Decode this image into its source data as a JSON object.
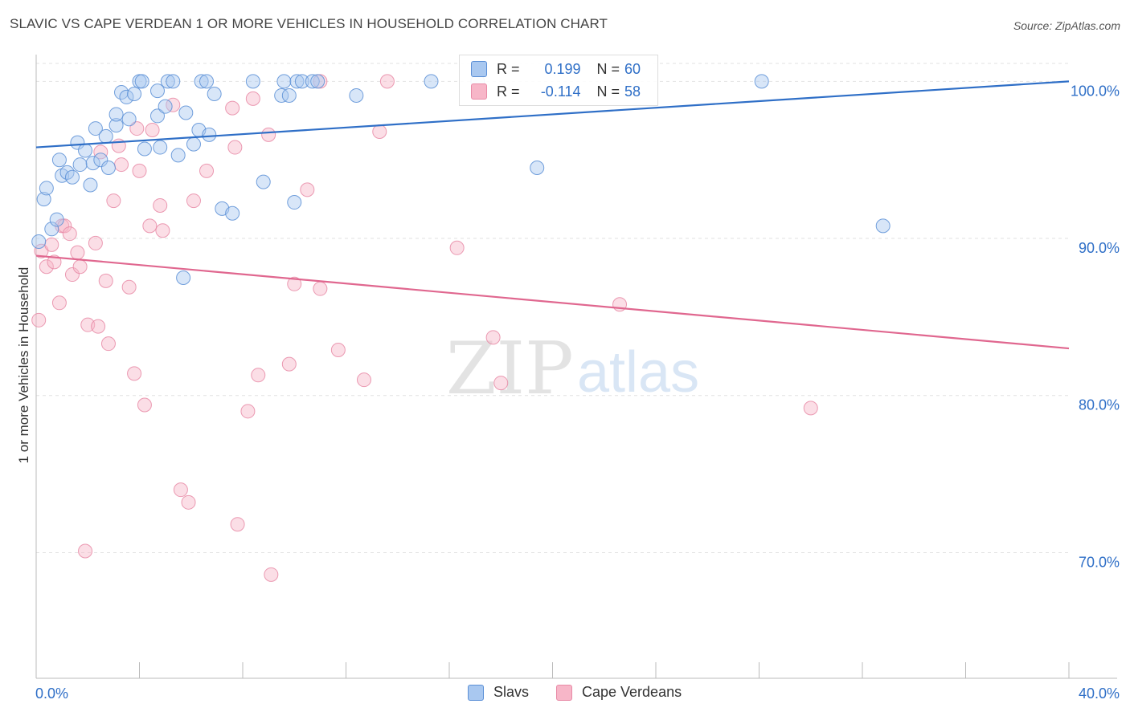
{
  "header": {
    "title": "SLAVIC VS CAPE VERDEAN 1 OR MORE VEHICLES IN HOUSEHOLD CORRELATION CHART",
    "source": "Source: ZipAtlas.com"
  },
  "watermark": {
    "zip": "ZIP",
    "atlas": "atlas"
  },
  "legend": {
    "slavs": {
      "r_label": "R =",
      "r_value": "0.199",
      "n_label": "N =",
      "n_value": "60"
    },
    "cape": {
      "r_label": "R =",
      "r_value": "-0.114",
      "n_label": "N =",
      "n_value": "58"
    }
  },
  "colors": {
    "slavs_fill": "#a9c8f0",
    "slavs_stroke": "#5b8fd6",
    "slavs_line": "#2f6fc7",
    "cape_fill": "#f7b6c8",
    "cape_stroke": "#e88aa6",
    "cape_line": "#e0678f",
    "tick_text": "#2f6fc7",
    "grid": "#e2e2e2"
  },
  "chart_data": {
    "type": "scatter",
    "title": "SLAVIC VS CAPE VERDEAN 1 OR MORE VEHICLES IN HOUSEHOLD CORRELATION CHART",
    "xlabel": "",
    "ylabel": "1 or more Vehicles in Household",
    "xlim": [
      0,
      40
    ],
    "ylim": [
      62,
      101.5
    ],
    "x_tick_labels": [
      "0.0%",
      "40.0%"
    ],
    "y_ticks": [
      70,
      80,
      90,
      100
    ],
    "y_tick_labels": [
      "70.0%",
      "80.0%",
      "90.0%",
      "100.0%"
    ],
    "grid": true,
    "legend_position": "top-center",
    "series": [
      {
        "name": "Slavs",
        "r": 0.199,
        "n": 60,
        "trend": [
          [
            0,
            95.8
          ],
          [
            40,
            100.0
          ]
        ],
        "points": [
          [
            0.1,
            89.8
          ],
          [
            0.3,
            92.5
          ],
          [
            0.4,
            93.2
          ],
          [
            0.6,
            90.6
          ],
          [
            0.8,
            91.2
          ],
          [
            0.9,
            95.0
          ],
          [
            1.0,
            94.0
          ],
          [
            1.2,
            94.2
          ],
          [
            1.4,
            93.9
          ],
          [
            1.6,
            96.1
          ],
          [
            1.7,
            94.7
          ],
          [
            1.9,
            95.6
          ],
          [
            2.1,
            93.4
          ],
          [
            2.2,
            94.8
          ],
          [
            2.3,
            97.0
          ],
          [
            2.5,
            95.0
          ],
          [
            2.7,
            96.5
          ],
          [
            2.8,
            94.5
          ],
          [
            3.1,
            97.2
          ],
          [
            3.1,
            97.9
          ],
          [
            3.3,
            99.3
          ],
          [
            3.5,
            99.0
          ],
          [
            3.6,
            97.6
          ],
          [
            3.8,
            99.2
          ],
          [
            4.0,
            100.0
          ],
          [
            4.1,
            100.0
          ],
          [
            4.2,
            95.7
          ],
          [
            4.7,
            97.8
          ],
          [
            4.7,
            99.4
          ],
          [
            4.8,
            95.8
          ],
          [
            5.0,
            98.4
          ],
          [
            5.1,
            100.0
          ],
          [
            5.3,
            100.0
          ],
          [
            5.5,
            95.3
          ],
          [
            5.8,
            98.0
          ],
          [
            6.1,
            96.0
          ],
          [
            6.3,
            96.9
          ],
          [
            6.4,
            100.0
          ],
          [
            6.6,
            100.0
          ],
          [
            6.7,
            96.6
          ],
          [
            6.9,
            99.2
          ],
          [
            7.2,
            91.9
          ],
          [
            7.6,
            91.6
          ],
          [
            8.4,
            100.0
          ],
          [
            8.8,
            93.6
          ],
          [
            9.5,
            99.1
          ],
          [
            9.6,
            100.0
          ],
          [
            9.8,
            99.1
          ],
          [
            10.0,
            92.3
          ],
          [
            10.1,
            100.0
          ],
          [
            10.3,
            100.0
          ],
          [
            10.7,
            100.0
          ],
          [
            10.9,
            100.0
          ],
          [
            12.4,
            99.1
          ],
          [
            15.3,
            100.0
          ],
          [
            17.1,
            100.0
          ],
          [
            19.4,
            94.5
          ],
          [
            28.1,
            100.0
          ],
          [
            32.8,
            90.8
          ],
          [
            5.7,
            87.5
          ]
        ]
      },
      {
        "name": "Cape Verdeans",
        "r": -0.114,
        "n": 58,
        "trend": [
          [
            0,
            88.9
          ],
          [
            40,
            83.0
          ]
        ],
        "points": [
          [
            0.1,
            84.8
          ],
          [
            0.2,
            89.2
          ],
          [
            0.4,
            88.2
          ],
          [
            0.6,
            89.6
          ],
          [
            0.7,
            88.5
          ],
          [
            0.9,
            85.9
          ],
          [
            1.0,
            90.8
          ],
          [
            1.1,
            90.8
          ],
          [
            1.3,
            90.3
          ],
          [
            1.4,
            87.7
          ],
          [
            1.6,
            89.1
          ],
          [
            1.7,
            88.2
          ],
          [
            1.9,
            70.1
          ],
          [
            2.0,
            84.5
          ],
          [
            2.3,
            89.7
          ],
          [
            2.4,
            84.4
          ],
          [
            2.5,
            95.5
          ],
          [
            2.7,
            87.3
          ],
          [
            2.8,
            83.3
          ],
          [
            3.0,
            92.4
          ],
          [
            3.2,
            95.9
          ],
          [
            3.3,
            94.7
          ],
          [
            3.6,
            86.9
          ],
          [
            3.8,
            81.4
          ],
          [
            3.9,
            97.0
          ],
          [
            4.0,
            94.3
          ],
          [
            4.2,
            79.4
          ],
          [
            4.4,
            90.8
          ],
          [
            4.5,
            96.9
          ],
          [
            4.8,
            92.1
          ],
          [
            4.9,
            90.5
          ],
          [
            5.3,
            98.5
          ],
          [
            5.6,
            74.0
          ],
          [
            5.9,
            73.2
          ],
          [
            6.1,
            92.4
          ],
          [
            6.6,
            94.3
          ],
          [
            7.6,
            98.3
          ],
          [
            7.7,
            95.8
          ],
          [
            7.8,
            71.8
          ],
          [
            8.2,
            79.0
          ],
          [
            8.4,
            98.9
          ],
          [
            8.6,
            81.3
          ],
          [
            9.1,
            68.6
          ],
          [
            9.0,
            96.6
          ],
          [
            9.8,
            82.0
          ],
          [
            10.0,
            87.1
          ],
          [
            10.5,
            93.1
          ],
          [
            11.0,
            86.8
          ],
          [
            11.0,
            100.0
          ],
          [
            11.7,
            82.9
          ],
          [
            12.7,
            81.0
          ],
          [
            13.3,
            96.8
          ],
          [
            13.6,
            100.0
          ],
          [
            16.3,
            89.4
          ],
          [
            17.7,
            83.7
          ],
          [
            18.0,
            80.8
          ],
          [
            22.6,
            85.8
          ],
          [
            30.0,
            79.2
          ]
        ]
      }
    ]
  }
}
